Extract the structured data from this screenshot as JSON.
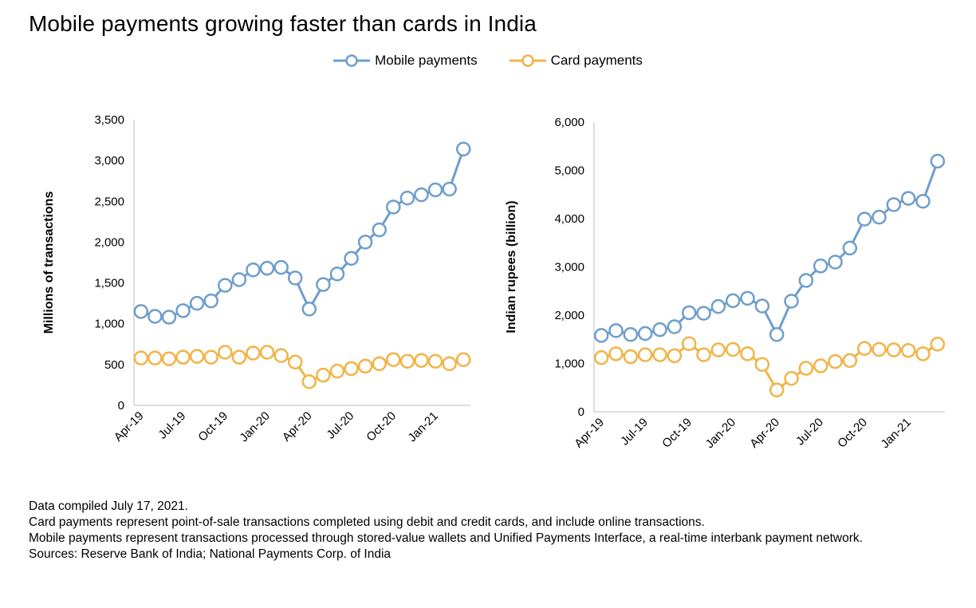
{
  "title": "Mobile payments growing faster than cards in India",
  "legend": {
    "mobile_label": "Mobile payments",
    "card_label": "Card payments"
  },
  "colors": {
    "mobile": "#6E9ECB",
    "card": "#F2B346",
    "axis": "#BFBFBF"
  },
  "chart_data": [
    {
      "type": "line",
      "ylabel": "Millions of transactions",
      "ylim": [
        0,
        3500
      ],
      "yticks": [
        "0",
        "500",
        "1,000",
        "1,500",
        "2,000",
        "2,500",
        "3,000",
        "3,500"
      ],
      "x": [
        "Apr-19",
        "May-19",
        "Jun-19",
        "Jul-19",
        "Aug-19",
        "Sep-19",
        "Oct-19",
        "Nov-19",
        "Dec-19",
        "Jan-20",
        "Feb-20",
        "Mar-20",
        "Apr-20",
        "May-20",
        "Jun-20",
        "Jul-20",
        "Aug-20",
        "Sep-20",
        "Oct-20",
        "Nov-20",
        "Dec-20",
        "Jan-21",
        "Feb-21",
        "Mar-21"
      ],
      "xtick_labels": [
        "Apr-19",
        "Jul-19",
        "Oct-19",
        "Jan-20",
        "Apr-20",
        "Jul-20",
        "Oct-20",
        "Jan-21"
      ],
      "series": [
        {
          "name": "Mobile payments",
          "values": [
            1150,
            1090,
            1080,
            1160,
            1250,
            1280,
            1470,
            1540,
            1660,
            1680,
            1690,
            1560,
            1180,
            1480,
            1610,
            1800,
            2000,
            2150,
            2430,
            2540,
            2580,
            2640,
            2650,
            3140
          ]
        },
        {
          "name": "Card payments",
          "values": [
            580,
            580,
            570,
            590,
            600,
            590,
            650,
            590,
            640,
            650,
            610,
            530,
            290,
            370,
            420,
            450,
            480,
            510,
            560,
            540,
            550,
            540,
            510,
            560
          ]
        }
      ],
      "grid": false,
      "legend": "top"
    },
    {
      "type": "line",
      "ylabel": "Indian rupees (billion)",
      "ylim": [
        0,
        6000
      ],
      "yticks": [
        "0",
        "1,000",
        "2,000",
        "3,000",
        "4,000",
        "5,000",
        "6,000"
      ],
      "x": [
        "Apr-19",
        "May-19",
        "Jun-19",
        "Jul-19",
        "Aug-19",
        "Sep-19",
        "Oct-19",
        "Nov-19",
        "Dec-19",
        "Jan-20",
        "Feb-20",
        "Mar-20",
        "Apr-20",
        "May-20",
        "Jun-20",
        "Jul-20",
        "Aug-20",
        "Sep-20",
        "Oct-20",
        "Nov-20",
        "Dec-20",
        "Jan-21",
        "Feb-21",
        "Mar-21"
      ],
      "xtick_labels": [
        "Apr-19",
        "Jul-19",
        "Oct-19",
        "Jan-20",
        "Apr-20",
        "Jul-20",
        "Oct-20",
        "Jan-21"
      ],
      "series": [
        {
          "name": "Mobile payments",
          "values": [
            1580,
            1680,
            1600,
            1620,
            1700,
            1760,
            2050,
            2040,
            2180,
            2300,
            2350,
            2190,
            1600,
            2290,
            2720,
            3020,
            3100,
            3390,
            3990,
            4030,
            4290,
            4420,
            4360,
            5190
          ]
        },
        {
          "name": "Card payments",
          "values": [
            1120,
            1200,
            1140,
            1180,
            1180,
            1160,
            1410,
            1180,
            1280,
            1290,
            1200,
            980,
            450,
            690,
            900,
            950,
            1040,
            1060,
            1310,
            1290,
            1280,
            1270,
            1200,
            1400
          ]
        }
      ],
      "grid": false,
      "legend": "top"
    }
  ],
  "footnotes": {
    "compiled": "Data compiled July 17, 2021.",
    "card_note": "Card payments represent point-of-sale transactions completed using debit and credit cards, and include online transactions.",
    "mobile_note": "Mobile payments represent transactions processed through stored-value wallets and Unified Payments Interface, a real-time interbank payment network.",
    "sources": "Sources: Reserve Bank of India; National Payments Corp. of India"
  }
}
